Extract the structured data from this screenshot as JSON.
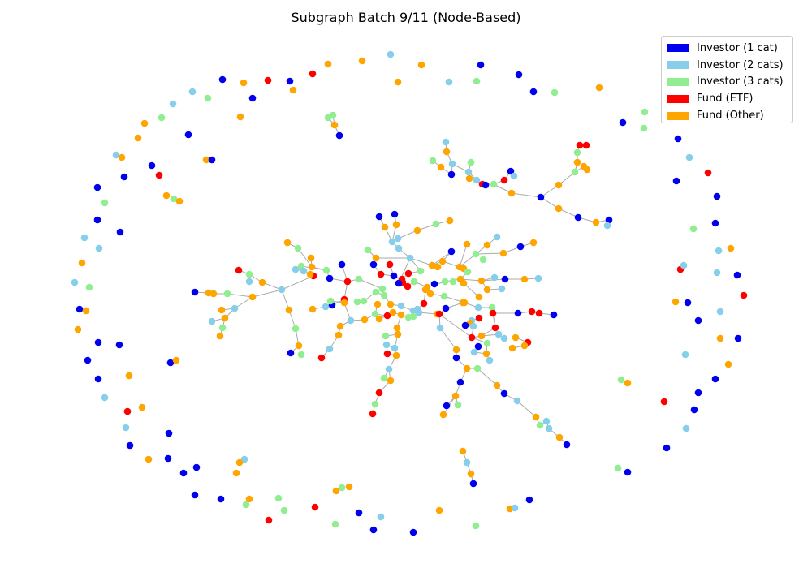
{
  "title": "Subgraph Batch 9/11 (Node-Based)",
  "legend": [
    {
      "label": "Investor (1 cat)",
      "color": "#0000ee"
    },
    {
      "label": "Investor (2 cats)",
      "color": "#87ceeb"
    },
    {
      "label": "Investor (3 cats)",
      "color": "#90ee90"
    },
    {
      "label": "Fund (ETF)",
      "color": "#ff0000"
    },
    {
      "label": "Fund (Other)",
      "color": "#ffa500"
    }
  ],
  "edge_color": "#aaaaaa"
}
